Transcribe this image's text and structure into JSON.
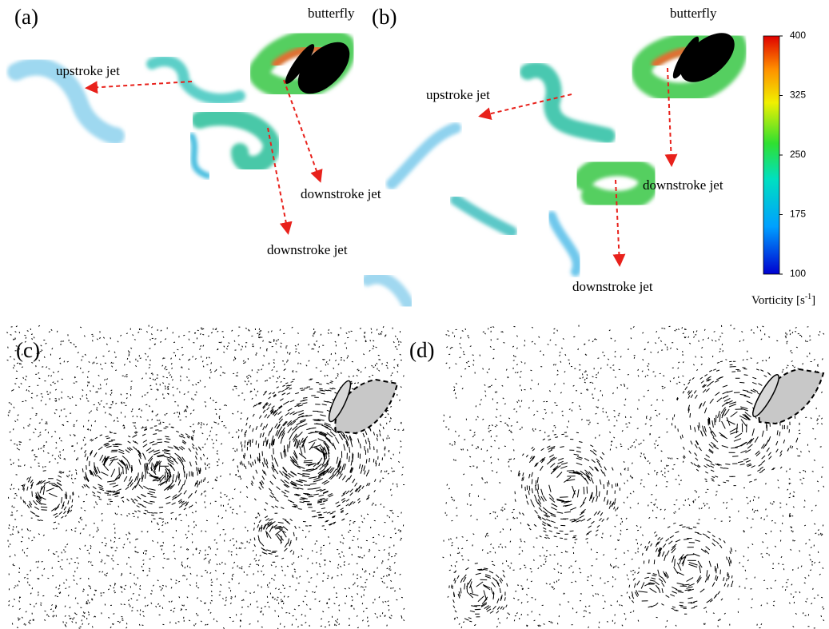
{
  "panels": [
    {
      "label": "(a)",
      "annotations": [
        "butterfly",
        "upstroke jet",
        "downstroke jet",
        "downstroke jet"
      ]
    },
    {
      "label": "(b)",
      "annotations": [
        "butterfly",
        "upstroke jet",
        "downstroke jet",
        "downstroke jet"
      ]
    },
    {
      "label": "(c)"
    },
    {
      "label": "(d)"
    }
  ],
  "colorbar": {
    "label": "Vorticity [s",
    "label_sup": "-1",
    "label_end": "]",
    "lim": [
      100,
      400
    ],
    "ticks": [
      100,
      175,
      250,
      325,
      400
    ]
  }
}
